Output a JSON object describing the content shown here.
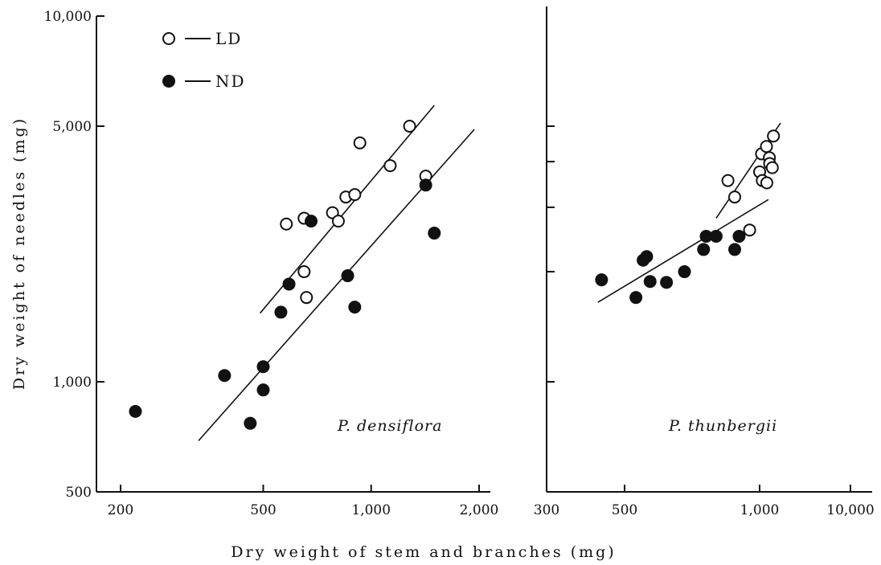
{
  "xlabel": "Dry weight of stem and branches (mg)",
  "ylabel": "Dry weight of needles (mg)",
  "legend": {
    "placement": "top-left",
    "entries": [
      {
        "marker": "open-circle",
        "label": "LD"
      },
      {
        "marker": "filled-circle",
        "label": "ND"
      }
    ]
  },
  "colors": {
    "ink": "#111111",
    "background": "#ffffff"
  },
  "chart_data": [
    {
      "type": "scatter",
      "title": "P. densiflora",
      "xscale": "log",
      "yscale": "log",
      "xlim": [
        200,
        2000
      ],
      "ylim": [
        500,
        10000
      ],
      "x_ticks": [
        200,
        500,
        1000,
        2000
      ],
      "x_tick_labels": [
        "200",
        "500",
        "1,000",
        "2,000"
      ],
      "y_ticks": [
        500,
        1000,
        5000,
        10000
      ],
      "y_tick_labels": [
        "500",
        "1,000",
        "5,000",
        "10,000"
      ],
      "series": [
        {
          "name": "LD",
          "marker": "open",
          "points": [
            [
              580,
              2700
            ],
            [
              650,
              2800
            ],
            [
              650,
              2000
            ],
            [
              660,
              1700
            ],
            [
              780,
              2900
            ],
            [
              810,
              2750
            ],
            [
              850,
              3200
            ],
            [
              900,
              3250
            ],
            [
              930,
              4500
            ],
            [
              1130,
              3900
            ],
            [
              1280,
              5000
            ],
            [
              1420,
              3650
            ]
          ]
        },
        {
          "name": "ND",
          "marker": "filled",
          "points": [
            [
              220,
              830
            ],
            [
              390,
              1040
            ],
            [
              460,
              770
            ],
            [
              500,
              1100
            ],
            [
              500,
              950
            ],
            [
              560,
              1550
            ],
            [
              590,
              1850
            ],
            [
              680,
              2750
            ],
            [
              860,
              1950
            ],
            [
              900,
              1600
            ],
            [
              1420,
              3450
            ],
            [
              1500,
              2550
            ]
          ]
        }
      ],
      "fit_lines": [
        {
          "series": "LD",
          "from": [
            490,
            1540
          ],
          "to": [
            1500,
            5700
          ]
        },
        {
          "series": "ND",
          "from": [
            330,
            690
          ],
          "to": [
            1940,
            4900
          ]
        }
      ]
    },
    {
      "type": "scatter",
      "title": "P. thunbergii",
      "xscale": "log",
      "yscale": "log",
      "xlim": [
        300,
        10000
      ],
      "ylim": [
        500,
        10000
      ],
      "x_ticks": [
        300,
        500,
        1000,
        10000
      ],
      "x_tick_labels": [
        "300",
        "500",
        "1,000",
        "10,000"
      ],
      "y_ticks": [],
      "y_tick_labels": [],
      "series": [
        {
          "name": "LD",
          "marker": "open",
          "points": [
            [
              850,
              3550
            ],
            [
              880,
              3200
            ],
            [
              950,
              2600
            ],
            [
              1000,
              3750
            ],
            [
              1050,
              4200
            ],
            [
              1070,
              3550
            ],
            [
              1190,
              4400
            ],
            [
              1200,
              3500
            ],
            [
              1280,
              4100
            ],
            [
              1290,
              3950
            ],
            [
              1380,
              3850
            ],
            [
              1420,
              4700
            ]
          ]
        },
        {
          "name": "ND",
          "marker": "filled",
          "points": [
            [
              430,
              1900
            ],
            [
              530,
              1700
            ],
            [
              550,
              2150
            ],
            [
              560,
              2200
            ],
            [
              570,
              1880
            ],
            [
              620,
              1870
            ],
            [
              680,
              2000
            ],
            [
              750,
              2300
            ],
            [
              760,
              2500
            ],
            [
              800,
              2500
            ],
            [
              880,
              2300
            ],
            [
              900,
              2500
            ]
          ]
        }
      ],
      "fit_lines": [
        {
          "series": "LD",
          "from": [
            800,
            2800
          ],
          "to": [
            1700,
            5100
          ]
        },
        {
          "series": "ND",
          "from": [
            420,
            1650
          ],
          "to": [
            1250,
            3150
          ]
        }
      ]
    }
  ]
}
